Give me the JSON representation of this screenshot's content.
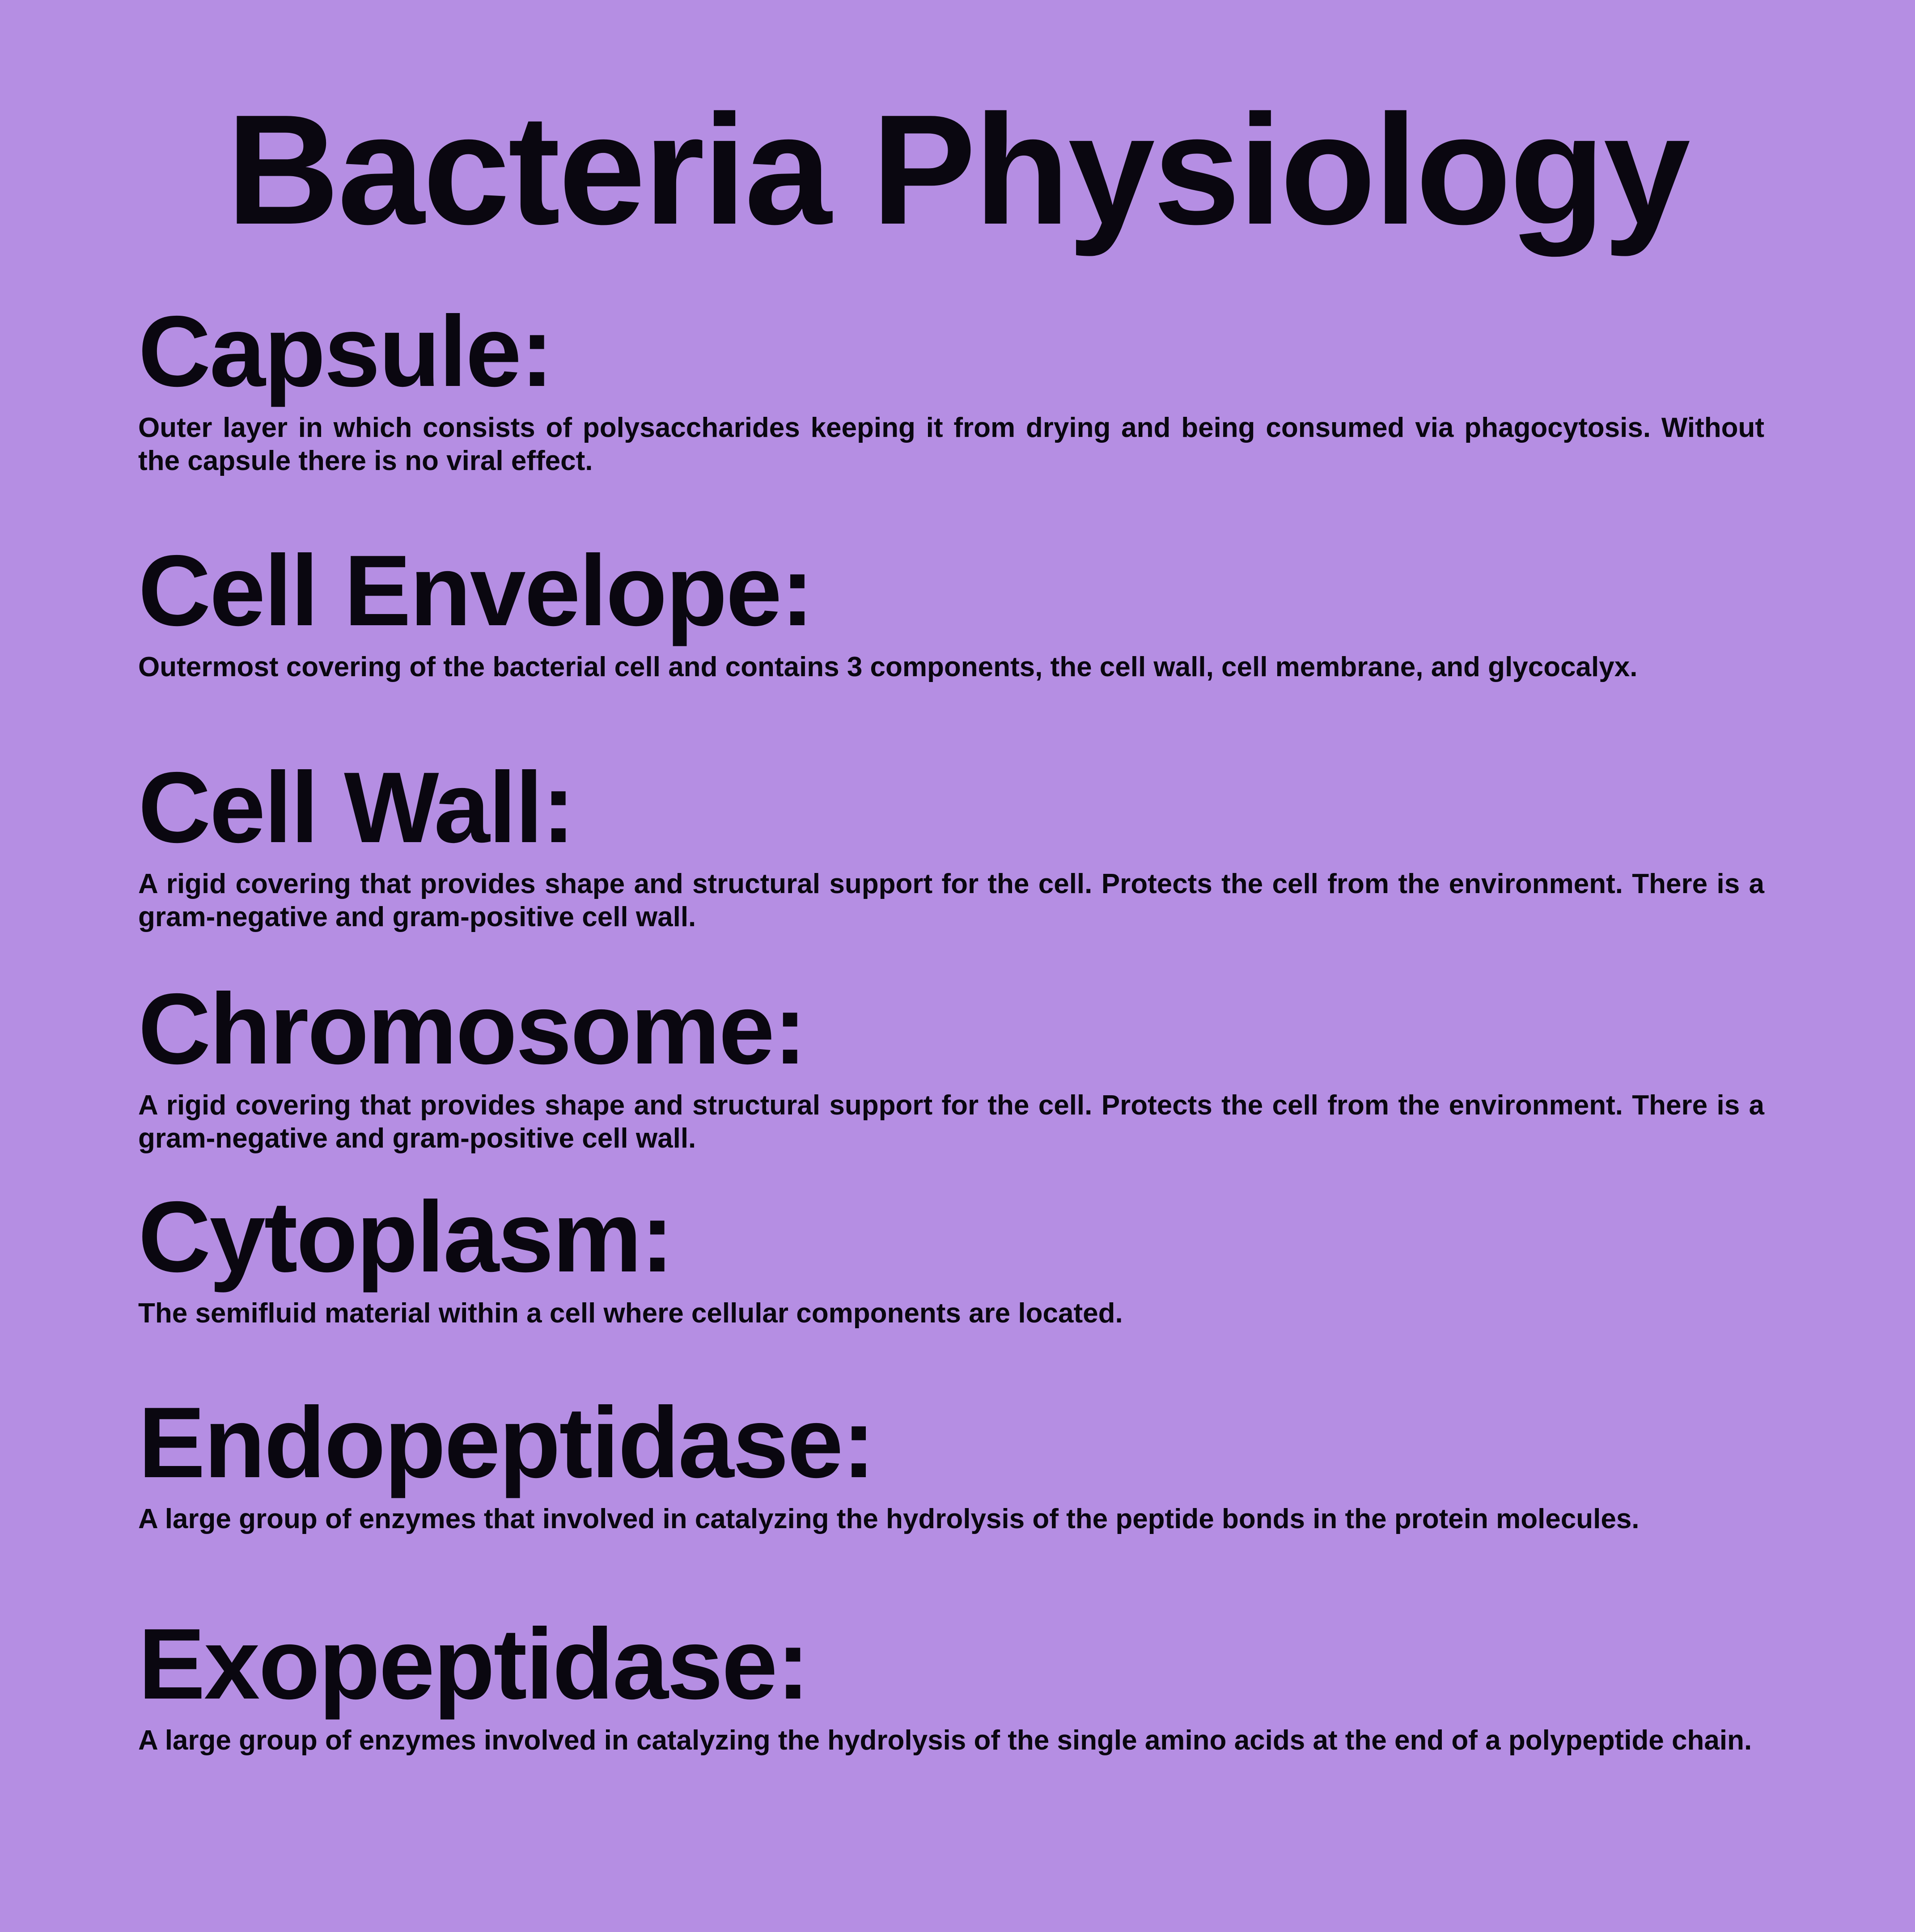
{
  "title": "Bacteria Physiology",
  "sections": [
    {
      "heading": "Capsule:",
      "body": "Outer layer in which consists of polysaccharides keeping it from drying and being consumed via phagocytosis. Without the capsule there is no viral effect."
    },
    {
      "heading": "Cell Envelope:",
      "body": "Outermost covering of the bacterial cell and contains 3 components, the cell wall, cell membrane, and glycocalyx."
    },
    {
      "heading": "Cell Wall:",
      "body": "A rigid covering that provides shape and structural support for the cell. Protects the cell from the environment. There is a gram-negative and gram-positive cell wall."
    },
    {
      "heading": "Chromosome:",
      "body": "A rigid covering that provides shape and structural support for the cell. Protects the cell from the environment. There is a gram-negative and gram-positive cell wall."
    },
    {
      "heading": "Cytoplasm:",
      "body": "The semifluid material within a cell where cellular components are located."
    },
    {
      "heading": "Endopeptidase:",
      "body": "A large group of enzymes that involved in catalyzing the hydrolysis of the peptide bonds in the protein molecules."
    },
    {
      "heading": "Exopeptidase:",
      "body": "A large group of enzymes involved in catalyzing the hydrolysis of the single amino acids at the end of a polypeptide chain."
    }
  ]
}
